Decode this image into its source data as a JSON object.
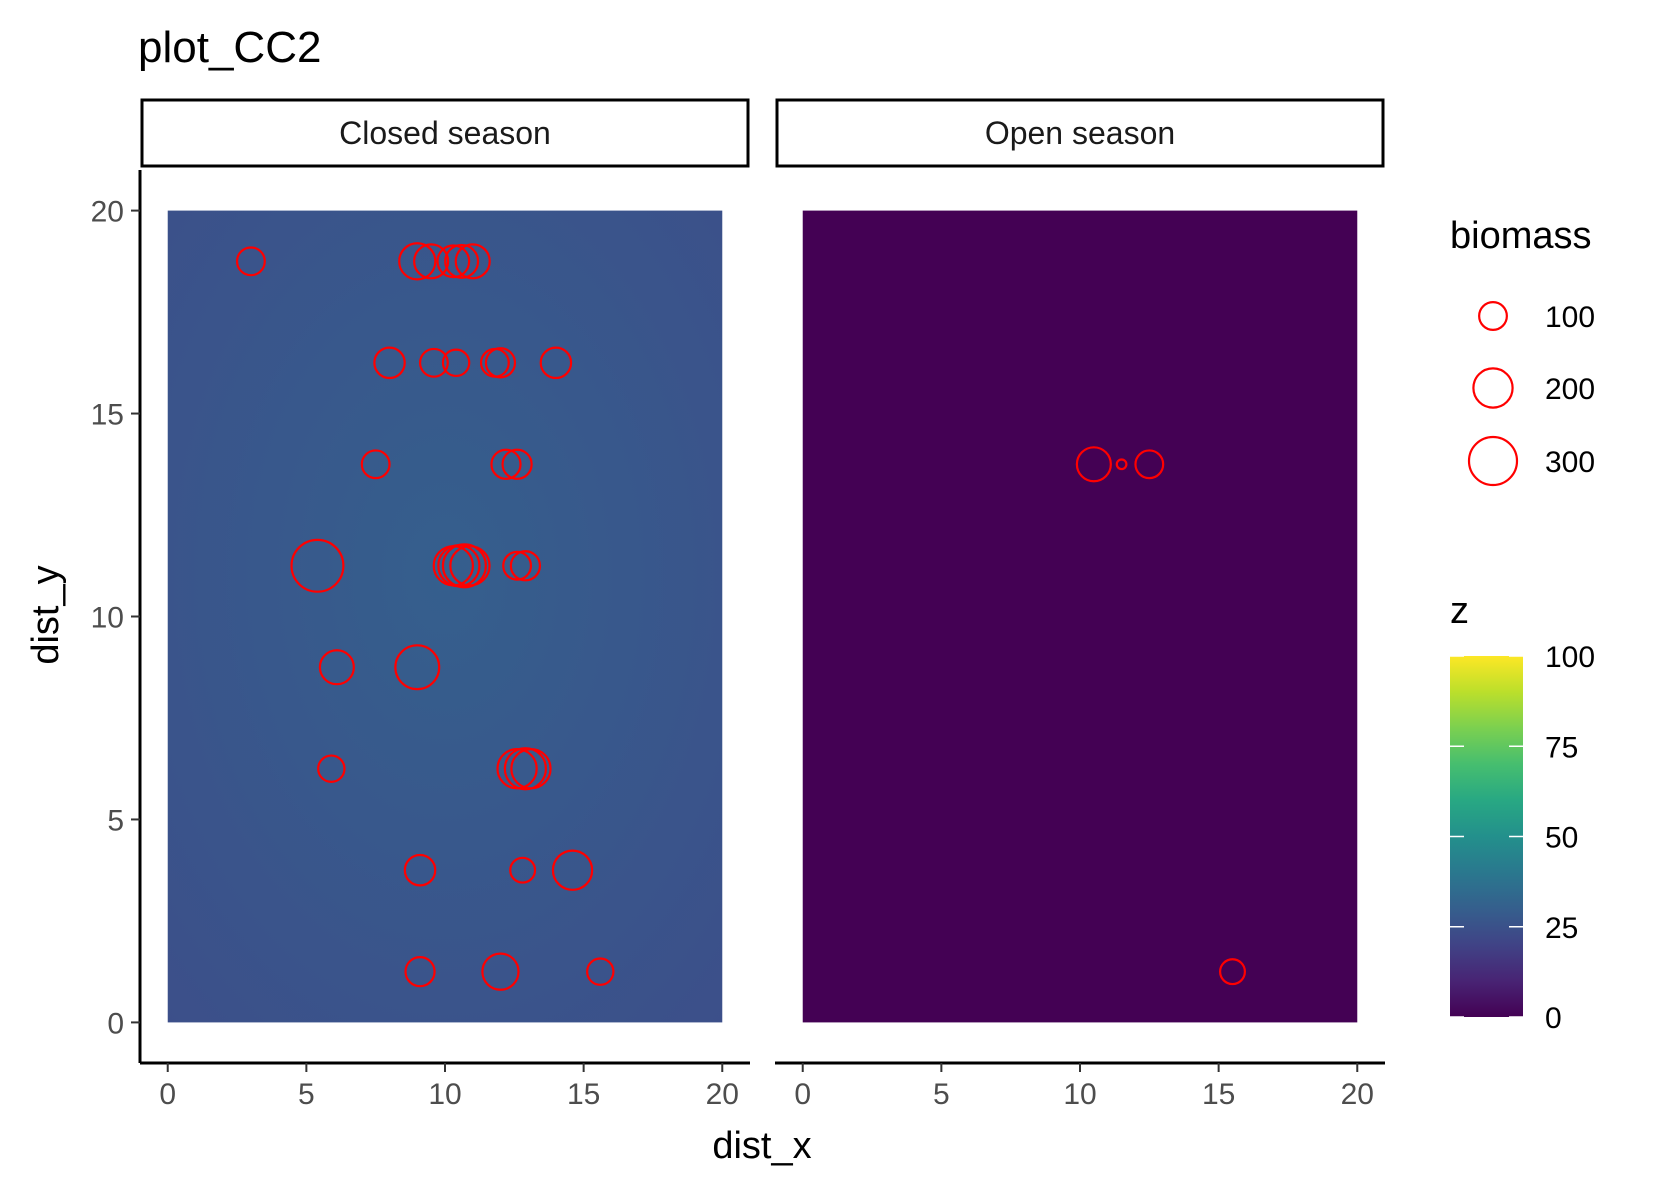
{
  "chart_data": {
    "type": "scatter",
    "title": "plot_CC2",
    "xlabel": "dist_x",
    "ylabel": "dist_y",
    "xlim": [
      -1,
      21
    ],
    "ylim": [
      -1,
      21
    ],
    "x_ticks": [
      0,
      5,
      10,
      15,
      20
    ],
    "y_ticks": [
      0,
      5,
      10,
      15,
      20
    ],
    "grid": false,
    "point_color": "#ff0000",
    "panels": [
      {
        "name": "Closed season",
        "tile_extent": {
          "x": [
            0,
            20
          ],
          "y": [
            0,
            20
          ]
        },
        "tile_z_center": 30,
        "tile_z_edge": 24,
        "points": [
          {
            "x": 3.0,
            "y": 18.75,
            "biomass": 100
          },
          {
            "x": 9.0,
            "y": 18.75,
            "biomass": 170
          },
          {
            "x": 9.5,
            "y": 18.75,
            "biomass": 150
          },
          {
            "x": 10.3,
            "y": 18.75,
            "biomass": 130
          },
          {
            "x": 10.6,
            "y": 18.75,
            "biomass": 140
          },
          {
            "x": 11.0,
            "y": 18.75,
            "biomass": 150
          },
          {
            "x": 8.0,
            "y": 16.25,
            "biomass": 120
          },
          {
            "x": 9.6,
            "y": 16.25,
            "biomass": 100
          },
          {
            "x": 10.4,
            "y": 16.25,
            "biomass": 90
          },
          {
            "x": 11.8,
            "y": 16.25,
            "biomass": 100
          },
          {
            "x": 12.0,
            "y": 16.25,
            "biomass": 110
          },
          {
            "x": 14.0,
            "y": 16.25,
            "biomass": 120
          },
          {
            "x": 7.5,
            "y": 13.75,
            "biomass": 100
          },
          {
            "x": 12.2,
            "y": 13.75,
            "biomass": 110
          },
          {
            "x": 12.6,
            "y": 13.75,
            "biomass": 110
          },
          {
            "x": 5.4,
            "y": 11.25,
            "biomass": 350
          },
          {
            "x": 10.3,
            "y": 11.25,
            "biomass": 200
          },
          {
            "x": 10.5,
            "y": 11.25,
            "biomass": 220
          },
          {
            "x": 10.7,
            "y": 11.25,
            "biomass": 240
          },
          {
            "x": 10.9,
            "y": 11.25,
            "biomass": 200
          },
          {
            "x": 12.6,
            "y": 11.25,
            "biomass": 100
          },
          {
            "x": 12.9,
            "y": 11.25,
            "biomass": 110
          },
          {
            "x": 6.1,
            "y": 8.75,
            "biomass": 150
          },
          {
            "x": 9.0,
            "y": 8.75,
            "biomass": 250
          },
          {
            "x": 5.9,
            "y": 6.25,
            "biomass": 90
          },
          {
            "x": 12.6,
            "y": 6.25,
            "biomass": 200
          },
          {
            "x": 12.9,
            "y": 6.25,
            "biomass": 220
          },
          {
            "x": 13.1,
            "y": 6.25,
            "biomass": 200
          },
          {
            "x": 9.1,
            "y": 3.75,
            "biomass": 120
          },
          {
            "x": 12.8,
            "y": 3.75,
            "biomass": 80
          },
          {
            "x": 14.6,
            "y": 3.75,
            "biomass": 200
          },
          {
            "x": 9.1,
            "y": 1.25,
            "biomass": 110
          },
          {
            "x": 12.0,
            "y": 1.25,
            "biomass": 170
          },
          {
            "x": 15.6,
            "y": 1.25,
            "biomass": 90
          }
        ]
      },
      {
        "name": "Open season",
        "tile_extent": {
          "x": [
            0,
            20
          ],
          "y": [
            0,
            20
          ]
        },
        "tile_z_center": 0,
        "tile_z_edge": 0,
        "points": [
          {
            "x": 10.5,
            "y": 13.75,
            "biomass": 150
          },
          {
            "x": 11.5,
            "y": 13.75,
            "biomass": 12
          },
          {
            "x": 12.5,
            "y": 13.75,
            "biomass": 100
          },
          {
            "x": 15.5,
            "y": 1.25,
            "biomass": 80
          }
        ]
      }
    ],
    "legend_size": {
      "title": "biomass",
      "entries": [
        100,
        200,
        300
      ],
      "entry_labels": [
        "100",
        "200",
        "300"
      ]
    },
    "legend_color": {
      "title": "z",
      "scale": "viridis",
      "limits": [
        0,
        100
      ],
      "ticks": [
        0,
        25,
        50,
        75,
        100
      ],
      "tick_labels": [
        "0",
        "25",
        "50",
        "75",
        "100"
      ]
    },
    "legend_placement": "right"
  }
}
